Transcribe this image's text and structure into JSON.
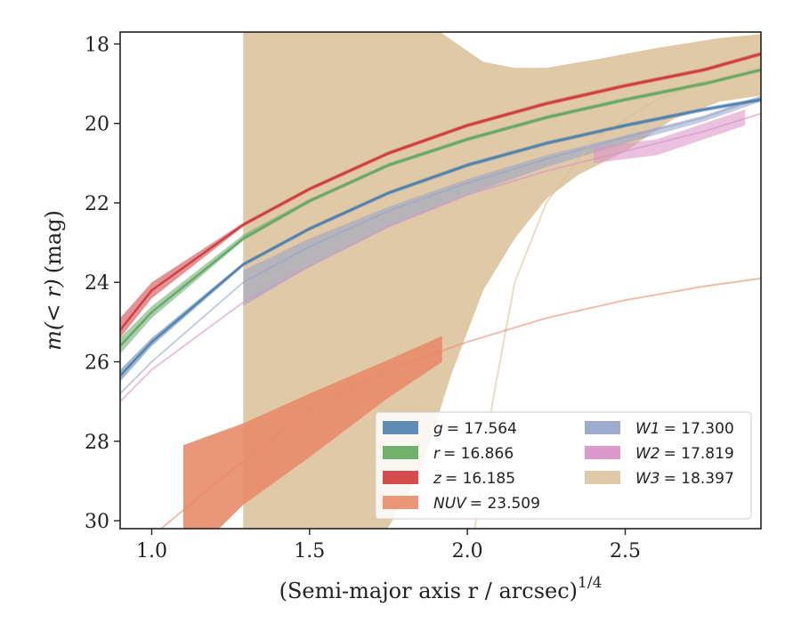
{
  "chart_data": {
    "type": "line",
    "xlabel": "(Semi-major axis r / arcsec)",
    "xlabel_superscript": "1/4",
    "ylabel_italic": "m(< r)",
    "ylabel_unit": "(mag)",
    "xlim": [
      0.9,
      2.93
    ],
    "ylim": [
      30.2,
      17.7
    ],
    "y_inverted": true,
    "x_ticks": [
      1.0,
      1.5,
      2.0,
      2.5
    ],
    "x_tick_labels": [
      "1.0",
      "1.5",
      "2.0",
      "2.5"
    ],
    "y_ticks": [
      18,
      20,
      22,
      24,
      26,
      28,
      30
    ],
    "y_tick_labels": [
      "18",
      "20",
      "22",
      "24",
      "26",
      "28",
      "30"
    ],
    "grid": false,
    "legend_position": "lower-right",
    "series": [
      {
        "key": "g",
        "label_symbol": "g",
        "label_value": "= 17.564",
        "color": "#4c7fae",
        "upper": [
          [
            0.9,
            26.2
          ],
          [
            1.0,
            25.4
          ],
          [
            1.29,
            23.5
          ],
          [
            1.5,
            22.6
          ],
          [
            1.75,
            21.7
          ],
          [
            2.0,
            21.0
          ],
          [
            2.25,
            20.45
          ],
          [
            2.5,
            20.0
          ],
          [
            2.75,
            19.6
          ],
          [
            2.93,
            19.35
          ]
        ],
        "lower": [
          [
            0.9,
            26.5
          ],
          [
            1.0,
            25.6
          ],
          [
            1.29,
            23.6
          ],
          [
            1.5,
            22.7
          ],
          [
            1.75,
            21.8
          ],
          [
            2.0,
            21.1
          ],
          [
            2.25,
            20.55
          ],
          [
            2.5,
            20.1
          ],
          [
            2.75,
            19.7
          ],
          [
            2.93,
            19.45
          ]
        ],
        "curve": [
          [
            0.9,
            26.35
          ],
          [
            1.0,
            25.5
          ],
          [
            1.29,
            23.55
          ],
          [
            1.5,
            22.65
          ],
          [
            1.75,
            21.75
          ],
          [
            2.0,
            21.05
          ],
          [
            2.25,
            20.5
          ],
          [
            2.5,
            20.05
          ],
          [
            2.75,
            19.65
          ],
          [
            2.93,
            19.4
          ]
        ]
      },
      {
        "key": "r",
        "label_symbol": "r",
        "label_value": "= 16.866",
        "color": "#60a862",
        "upper": [
          [
            0.9,
            25.4
          ],
          [
            1.0,
            24.6
          ],
          [
            1.29,
            22.8
          ],
          [
            1.5,
            21.9
          ],
          [
            1.75,
            21.0
          ],
          [
            2.0,
            20.35
          ],
          [
            2.25,
            19.8
          ],
          [
            2.5,
            19.35
          ],
          [
            2.75,
            18.95
          ],
          [
            2.93,
            18.6
          ]
        ],
        "lower": [
          [
            0.9,
            25.8
          ],
          [
            1.0,
            24.9
          ],
          [
            1.29,
            22.95
          ],
          [
            1.5,
            22.0
          ],
          [
            1.75,
            21.1
          ],
          [
            2.0,
            20.45
          ],
          [
            2.25,
            19.9
          ],
          [
            2.5,
            19.45
          ],
          [
            2.75,
            19.05
          ],
          [
            2.93,
            18.7
          ]
        ],
        "curve": [
          [
            0.9,
            25.6
          ],
          [
            1.0,
            24.75
          ],
          [
            1.29,
            22.9
          ],
          [
            1.5,
            21.95
          ],
          [
            1.75,
            21.05
          ],
          [
            2.0,
            20.4
          ],
          [
            2.25,
            19.85
          ],
          [
            2.5,
            19.4
          ],
          [
            2.75,
            19.0
          ],
          [
            2.93,
            18.65
          ]
        ]
      },
      {
        "key": "z",
        "label_symbol": "z",
        "label_value": "= 16.185",
        "color": "#d0393c",
        "upper": [
          [
            0.9,
            24.9
          ],
          [
            1.0,
            24.0
          ],
          [
            1.29,
            22.5
          ],
          [
            1.5,
            21.6
          ],
          [
            1.75,
            20.7
          ],
          [
            2.0,
            20.0
          ],
          [
            2.25,
            19.45
          ],
          [
            2.5,
            19.0
          ],
          [
            2.75,
            18.6
          ],
          [
            2.93,
            18.2
          ]
        ],
        "lower": [
          [
            0.9,
            25.4
          ],
          [
            1.0,
            24.4
          ],
          [
            1.29,
            22.6
          ],
          [
            1.5,
            21.7
          ],
          [
            1.75,
            20.8
          ],
          [
            2.0,
            20.1
          ],
          [
            2.25,
            19.55
          ],
          [
            2.5,
            19.1
          ],
          [
            2.75,
            18.7
          ],
          [
            2.93,
            18.3
          ]
        ],
        "curve": [
          [
            0.9,
            25.2
          ],
          [
            1.0,
            24.2
          ],
          [
            1.29,
            22.55
          ],
          [
            1.5,
            21.65
          ],
          [
            1.75,
            20.75
          ],
          [
            2.0,
            20.05
          ],
          [
            2.25,
            19.5
          ],
          [
            2.5,
            19.05
          ],
          [
            2.75,
            18.65
          ],
          [
            2.93,
            18.25
          ]
        ]
      },
      {
        "key": "NUV",
        "label_symbol": "NUV",
        "label_value": "= 23.509",
        "color": "#e88b69",
        "band_upper": [
          [
            1.1,
            28.1
          ],
          [
            1.29,
            27.55
          ],
          [
            1.5,
            26.8
          ],
          [
            1.75,
            25.95
          ],
          [
            1.92,
            25.35
          ]
        ],
        "band_lower": [
          [
            1.1,
            30.3
          ],
          [
            1.2,
            30.3
          ],
          [
            1.29,
            29.6
          ],
          [
            1.5,
            28.4
          ],
          [
            1.75,
            26.9
          ],
          [
            1.92,
            26.0
          ]
        ],
        "curve": [
          [
            1.0,
            30.4
          ],
          [
            1.15,
            29.4
          ],
          [
            1.29,
            28.5
          ],
          [
            1.5,
            27.2
          ],
          [
            1.75,
            26.2
          ],
          [
            2.0,
            25.5
          ],
          [
            2.25,
            24.9
          ],
          [
            2.5,
            24.45
          ],
          [
            2.75,
            24.1
          ],
          [
            2.93,
            23.9
          ]
        ]
      },
      {
        "key": "W1",
        "label_symbol": "W1",
        "label_value": "= 17.300",
        "color": "#93a3c9",
        "upper": [
          [
            1.29,
            23.7
          ],
          [
            1.5,
            22.9
          ],
          [
            1.75,
            22.1
          ],
          [
            2.0,
            21.4
          ],
          [
            2.25,
            20.8
          ],
          [
            2.5,
            20.3
          ],
          [
            2.75,
            19.8
          ],
          [
            2.93,
            19.3
          ]
        ],
        "lower": [
          [
            1.29,
            24.6
          ],
          [
            1.5,
            23.6
          ],
          [
            1.75,
            22.6
          ],
          [
            2.0,
            21.8
          ],
          [
            2.25,
            21.1
          ],
          [
            2.5,
            20.5
          ],
          [
            2.75,
            19.95
          ],
          [
            2.93,
            19.45
          ]
        ],
        "curve": [
          [
            0.9,
            26.8
          ],
          [
            1.0,
            26.0
          ],
          [
            1.29,
            24.0
          ],
          [
            1.5,
            23.1
          ],
          [
            1.75,
            22.2
          ],
          [
            2.0,
            21.5
          ],
          [
            2.25,
            20.9
          ],
          [
            2.5,
            20.35
          ],
          [
            2.75,
            19.85
          ],
          [
            2.93,
            19.35
          ]
        ]
      },
      {
        "key": "W2",
        "label_symbol": "W2",
        "label_value": "= 17.819",
        "color": "#d88fc6",
        "upper": [
          [
            2.4,
            20.6
          ],
          [
            2.6,
            20.4
          ],
          [
            2.88,
            19.65
          ]
        ],
        "lower": [
          [
            2.4,
            21.0
          ],
          [
            2.6,
            20.8
          ],
          [
            2.88,
            20.05
          ]
        ],
        "curve": [
          [
            0.9,
            27.0
          ],
          [
            1.0,
            26.2
          ],
          [
            1.29,
            24.5
          ],
          [
            1.5,
            23.6
          ],
          [
            1.75,
            22.6
          ],
          [
            2.0,
            21.8
          ],
          [
            2.25,
            21.2
          ],
          [
            2.5,
            20.7
          ],
          [
            2.75,
            20.2
          ],
          [
            2.93,
            19.75
          ]
        ]
      },
      {
        "key": "W3",
        "label_symbol": "W3",
        "label_value": "= 18.397",
        "color": "#d9bf98",
        "band_upper": [
          [
            1.29,
            17.4
          ],
          [
            1.86,
            17.4
          ],
          [
            1.95,
            17.9
          ],
          [
            2.05,
            18.45
          ],
          [
            2.15,
            18.6
          ],
          [
            2.25,
            18.6
          ],
          [
            2.4,
            18.4
          ],
          [
            2.6,
            18.1
          ],
          [
            2.8,
            17.85
          ],
          [
            2.93,
            17.75
          ]
        ],
        "band_lower": [
          [
            1.29,
            30.3
          ],
          [
            1.74,
            30.3
          ],
          [
            1.85,
            28.8
          ],
          [
            1.95,
            26.3
          ],
          [
            2.05,
            24.2
          ],
          [
            2.15,
            22.9
          ],
          [
            2.25,
            21.9
          ],
          [
            2.35,
            21.3
          ],
          [
            2.5,
            20.7
          ],
          [
            2.65,
            19.9
          ],
          [
            2.8,
            19.45
          ],
          [
            2.93,
            19.3
          ]
        ],
        "curve": [
          [
            2.02,
            30.4
          ],
          [
            2.08,
            27.0
          ],
          [
            2.15,
            24.0
          ],
          [
            2.25,
            22.0
          ],
          [
            2.4,
            20.4
          ],
          [
            2.6,
            19.4
          ],
          [
            2.8,
            18.85
          ],
          [
            2.93,
            18.6
          ]
        ]
      }
    ]
  }
}
